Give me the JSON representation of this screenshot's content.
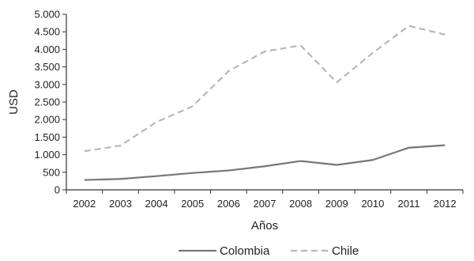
{
  "chart_data": {
    "type": "line",
    "xlabel": "Años",
    "ylabel": "USD",
    "categories": [
      "2002",
      "2003",
      "2004",
      "2005",
      "2006",
      "2007",
      "2008",
      "2009",
      "2010",
      "2011",
      "2012"
    ],
    "ylim": [
      0,
      5000
    ],
    "yticks": [
      0,
      500,
      1000,
      1500,
      2000,
      2500,
      3000,
      3500,
      4000,
      4500,
      5000
    ],
    "ytick_labels": [
      "0",
      "500",
      "1.000",
      "1.500",
      "2.000",
      "2.500",
      "3.000",
      "3.500",
      "4.000",
      "4.500",
      "5.000"
    ],
    "grid": false,
    "legend_position": "bottom",
    "series": [
      {
        "name": "Colombia",
        "color": "#777777",
        "dash": "solid",
        "values": [
          280,
          310,
          390,
          480,
          550,
          670,
          820,
          710,
          850,
          1200,
          1270
        ]
      },
      {
        "name": "Chile",
        "color": "#b8b8b8",
        "dash": "dashed",
        "values": [
          1100,
          1260,
          1930,
          2380,
          3380,
          3940,
          4110,
          3060,
          3900,
          4670,
          4420
        ]
      }
    ]
  }
}
